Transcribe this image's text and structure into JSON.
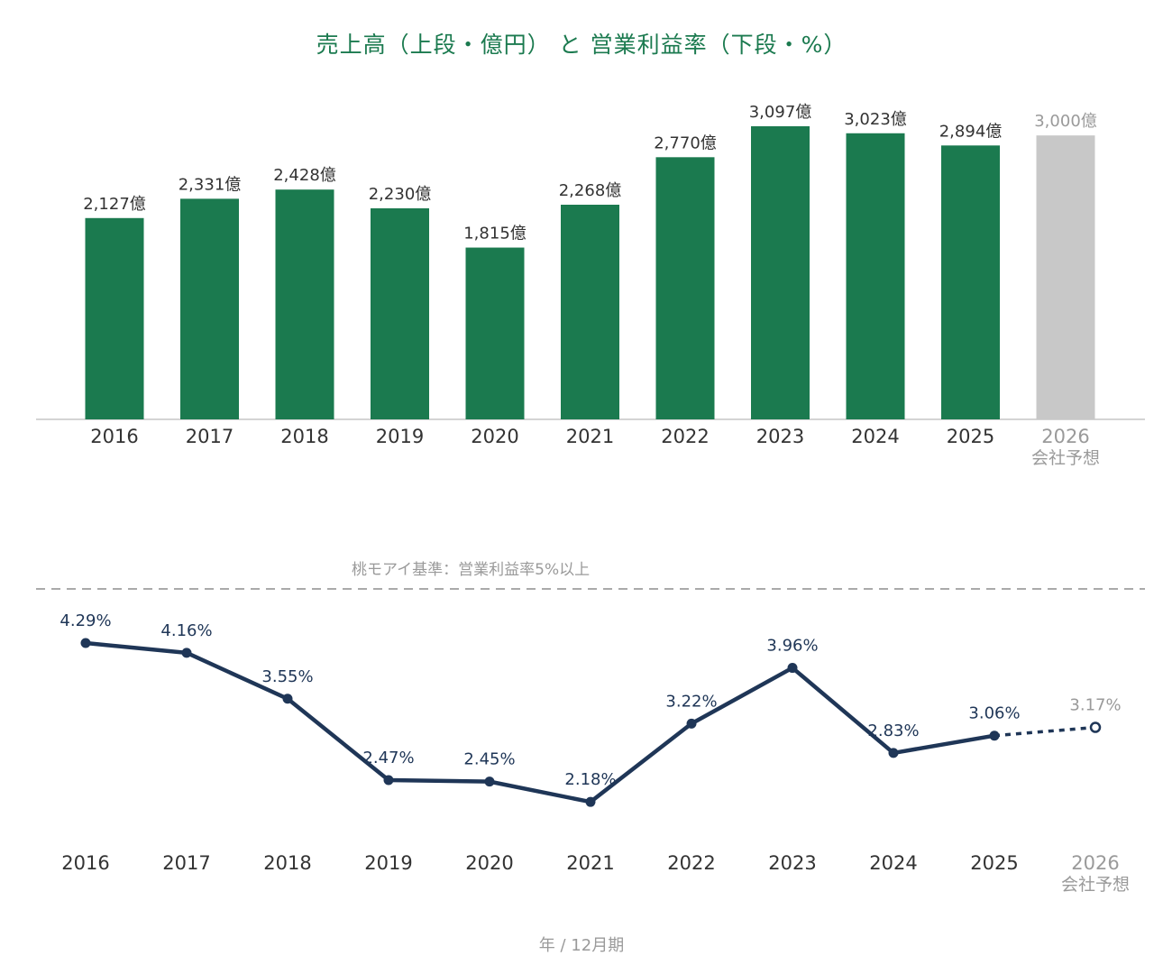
{
  "title": "売上高（上段・億円） と 営業利益率（下段・%）",
  "footer": "年 / 12月期",
  "colors": {
    "bar": "#1b7a4f",
    "forecast_bar": "#c8c8c8",
    "line": "#1f3657",
    "forecast_text": "#9a9a9a",
    "text": "#333333",
    "axis": "#bbbbbb",
    "threshold": "#aaaaaa"
  },
  "chart_data": [
    {
      "type": "bar",
      "categories": [
        "2016",
        "2017",
        "2018",
        "2019",
        "2020",
        "2021",
        "2022",
        "2023",
        "2024",
        "2025",
        "2026"
      ],
      "category_sublabels": [
        "",
        "",
        "",
        "",
        "",
        "",
        "",
        "",
        "",
        "",
        "会社予想"
      ],
      "values": [
        2127,
        2331,
        2428,
        2230,
        1815,
        2268,
        2770,
        3097,
        3023,
        2894,
        3000
      ],
      "value_labels": [
        "2,127億",
        "2,331億",
        "2,428億",
        "2,230億",
        "1,815億",
        "2,268億",
        "2,770億",
        "3,097億",
        "3,023億",
        "2,894億",
        "3,000億"
      ],
      "forecast": [
        false,
        false,
        false,
        false,
        false,
        false,
        false,
        false,
        false,
        false,
        true
      ],
      "ylim": [
        0,
        3097
      ]
    },
    {
      "type": "line",
      "categories": [
        "2016",
        "2017",
        "2018",
        "2019",
        "2020",
        "2021",
        "2022",
        "2023",
        "2024",
        "2025",
        "2026"
      ],
      "category_sublabels": [
        "",
        "",
        "",
        "",
        "",
        "",
        "",
        "",
        "",
        "",
        "会社予想"
      ],
      "values": [
        4.29,
        4.16,
        3.55,
        2.47,
        2.45,
        2.18,
        3.22,
        3.96,
        2.83,
        3.06,
        3.17
      ],
      "value_labels": [
        "4.29%",
        "4.16%",
        "3.55%",
        "2.47%",
        "2.45%",
        "2.18%",
        "3.22%",
        "3.96%",
        "2.83%",
        "3.06%",
        "3.17%"
      ],
      "forecast": [
        false,
        false,
        false,
        false,
        false,
        false,
        false,
        false,
        false,
        false,
        true
      ],
      "threshold": {
        "value": 5,
        "label": "桃モアイ基準：営業利益率5%以上"
      }
    }
  ]
}
